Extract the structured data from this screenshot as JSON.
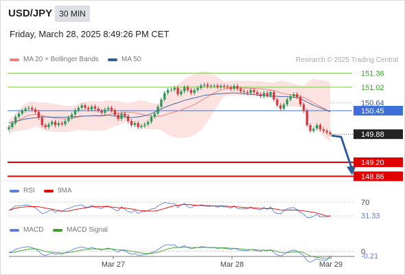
{
  "header": {
    "symbol": "USD/JPY",
    "timeframe": "30 MIN",
    "datetime": "Friday, March 28, 2025 8:49:26 PM CET",
    "credit": "Research © 2025 Trading Central"
  },
  "legends": {
    "price": [
      {
        "label": "MA 20 + Bollinger Bands",
        "color": "#f08080"
      },
      {
        "label": "MA 50",
        "color": "#2e5c9a"
      }
    ],
    "rsi": [
      {
        "label": "RSI",
        "color": "#5b7fd6"
      },
      {
        "label": "9MA",
        "color": "#e00000"
      }
    ],
    "macd": [
      {
        "label": "MACD",
        "color": "#5b7fd6"
      },
      {
        "label": "MACD Signal",
        "color": "#3aa02a"
      }
    ]
  },
  "chart_data": [
    {
      "type": "candlestick",
      "title": "USD/JPY",
      "x_ticks": [
        "Mar 27",
        "Mar 28",
        "Mar 29"
      ],
      "ylim": [
        148.75,
        151.55
      ],
      "last_price": 149.88,
      "levels": [
        {
          "value": 151.36,
          "label": "151.36",
          "kind": "resistance",
          "color": "#7dc34a"
        },
        {
          "value": 151.02,
          "label": "151.02",
          "kind": "resistance",
          "color": "#7dc34a"
        },
        {
          "value": 150.64,
          "label": "150.64",
          "kind": "pivot",
          "color": "#2e5c9a"
        },
        {
          "value": 150.45,
          "label": "150.45",
          "kind": "pivot",
          "color": "#3d6fd6"
        },
        {
          "value": 149.2,
          "label": "149.20",
          "kind": "support",
          "color": "#e00000"
        },
        {
          "value": 148.86,
          "label": "148.86",
          "kind": "support",
          "color": "#e00000"
        }
      ],
      "close": [
        150.05,
        150.15,
        150.3,
        150.38,
        150.45,
        150.5,
        150.52,
        150.48,
        150.42,
        150.28,
        150.1,
        150.05,
        150.12,
        150.18,
        150.1,
        150.15,
        150.12,
        150.2,
        150.28,
        150.36,
        150.46,
        150.52,
        150.58,
        150.52,
        150.48,
        150.55,
        150.5,
        150.45,
        150.4,
        150.48,
        150.52,
        150.46,
        150.35,
        150.25,
        150.38,
        150.32,
        150.2,
        150.1,
        150.15,
        150.05,
        150.08,
        150.12,
        150.18,
        150.3,
        150.38,
        150.55,
        150.72,
        150.88,
        150.95,
        150.96,
        151.0,
        150.85,
        150.92,
        151.02,
        150.95,
        150.88,
        150.95,
        151.0,
        151.06,
        151.08,
        151.04,
        151.05,
        151.06,
        151.02,
        151.05,
        151.04,
        151.02,
        150.98,
        151.05,
        150.98,
        150.92,
        150.9,
        150.88,
        150.95,
        150.9,
        150.85,
        150.8,
        150.88,
        150.82,
        150.9,
        150.72,
        150.58,
        150.5,
        150.6,
        150.72,
        150.8,
        150.85,
        150.78,
        150.6,
        150.45,
        150.1,
        149.96,
        150.02,
        150.1,
        150.0,
        149.96,
        149.92,
        149.88
      ],
      "ma50": [
        150.15,
        150.17,
        150.19,
        150.21,
        150.23,
        150.25,
        150.26,
        150.27,
        150.28,
        150.29,
        150.3,
        150.3,
        150.3,
        150.29,
        150.29,
        150.29,
        150.29,
        150.29,
        150.3,
        150.3,
        150.3,
        150.31,
        150.32,
        150.32,
        150.32,
        150.33,
        150.33,
        150.33,
        150.33,
        150.34,
        150.34,
        150.33,
        150.32,
        150.31,
        150.31,
        150.3,
        150.29,
        150.28,
        150.29,
        150.3,
        150.31,
        150.33,
        150.35,
        150.38,
        150.41,
        150.45,
        150.49,
        150.53,
        150.56,
        150.59,
        150.62,
        150.64,
        150.67,
        150.7,
        150.72,
        150.74,
        150.76,
        150.78,
        150.8,
        150.82,
        150.83,
        150.84,
        150.85,
        150.86,
        150.86,
        150.87,
        150.87,
        150.88,
        150.88,
        150.88,
        150.87,
        150.86,
        150.85,
        150.85,
        150.84,
        150.83,
        150.82,
        150.81,
        150.81,
        150.8,
        150.8,
        150.8,
        150.79,
        150.79,
        150.79,
        150.78,
        150.78,
        150.77,
        150.74,
        150.7,
        150.66,
        150.62,
        150.58,
        150.55,
        150.52,
        150.49,
        150.46,
        150.43
      ],
      "rsi_last": 31.33,
      "rsi_ticks": [
        70,
        30
      ],
      "macd_last": -0.21,
      "macd_ticks": [
        0
      ]
    }
  ]
}
